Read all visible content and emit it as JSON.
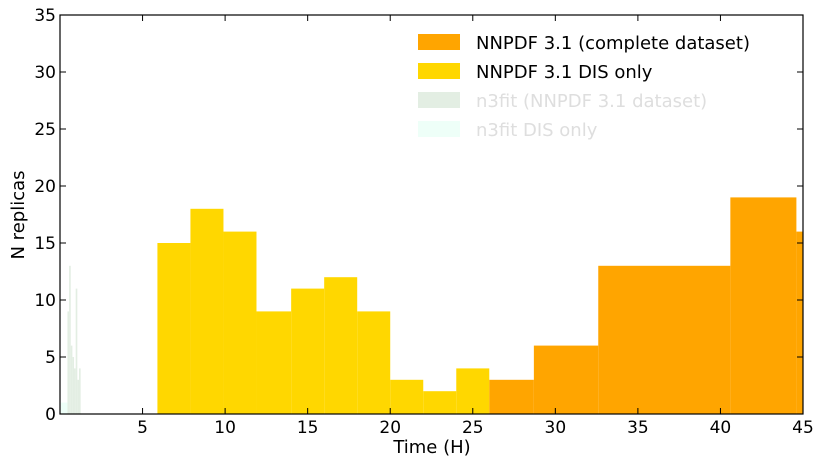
{
  "chart_data": {
    "type": "bar",
    "xlabel": "Time (H)",
    "ylabel": "N replicas",
    "xlim": [
      0,
      45
    ],
    "ylim": [
      0,
      35
    ],
    "xticks": [
      5,
      10,
      15,
      20,
      25,
      30,
      35,
      40,
      45
    ],
    "xtick_labels": [
      "5",
      "10",
      "15",
      "20",
      "25",
      "30",
      "35",
      "40",
      "45"
    ],
    "yticks": [
      0,
      5,
      10,
      15,
      20,
      25,
      30,
      35
    ],
    "ytick_labels": [
      "0",
      "5",
      "10",
      "15",
      "20",
      "25",
      "30",
      "35"
    ],
    "grid": false,
    "legend_placement": "top-right",
    "series": [
      {
        "name": "NNPDF 3.1 (complete dataset)",
        "color": "#FFA500",
        "bins": [
          {
            "x0": 26.0,
            "x1": 28.7,
            "value": 3
          },
          {
            "x0": 28.7,
            "x1": 32.6,
            "value": 6
          },
          {
            "x0": 32.6,
            "x1": 40.6,
            "value": 13
          },
          {
            "x0": 40.6,
            "x1": 44.6,
            "value": 19
          },
          {
            "x0": 44.6,
            "x1": 45.3,
            "value": 16
          }
        ]
      },
      {
        "name": "NNPDF 3.1 DIS only",
        "color": "#FFD700",
        "bins": [
          {
            "x0": 5.9,
            "x1": 7.9,
            "value": 15
          },
          {
            "x0": 7.9,
            "x1": 9.9,
            "value": 18
          },
          {
            "x0": 9.9,
            "x1": 11.9,
            "value": 16
          },
          {
            "x0": 11.9,
            "x1": 14.0,
            "value": 9
          },
          {
            "x0": 14.0,
            "x1": 16.0,
            "value": 11
          },
          {
            "x0": 16.0,
            "x1": 18.0,
            "value": 12
          },
          {
            "x0": 18.0,
            "x1": 20.0,
            "value": 9
          },
          {
            "x0": 20.0,
            "x1": 22.0,
            "value": 3
          },
          {
            "x0": 22.0,
            "x1": 24.0,
            "value": 2
          },
          {
            "x0": 24.0,
            "x1": 26.0,
            "value": 4
          }
        ]
      },
      {
        "name": "n3fit (NNPDF 3.1 dataset)",
        "color": "#E3EEE3",
        "bins": [
          {
            "x0": 0.45,
            "x1": 0.55,
            "value": 9
          },
          {
            "x0": 0.55,
            "x1": 0.65,
            "value": 13
          },
          {
            "x0": 0.65,
            "x1": 0.75,
            "value": 6
          },
          {
            "x0": 0.75,
            "x1": 0.85,
            "value": 5
          },
          {
            "x0": 0.85,
            "x1": 0.95,
            "value": 4
          },
          {
            "x0": 0.95,
            "x1": 1.05,
            "value": 11
          },
          {
            "x0": 1.05,
            "x1": 1.15,
            "value": 3
          },
          {
            "x0": 1.15,
            "x1": 1.25,
            "value": 4
          }
        ]
      },
      {
        "name": "n3fit DIS only",
        "color": "#EEFFF8",
        "bins": [
          {
            "x0": 0.05,
            "x1": 0.45,
            "value": 1
          }
        ]
      }
    ]
  }
}
